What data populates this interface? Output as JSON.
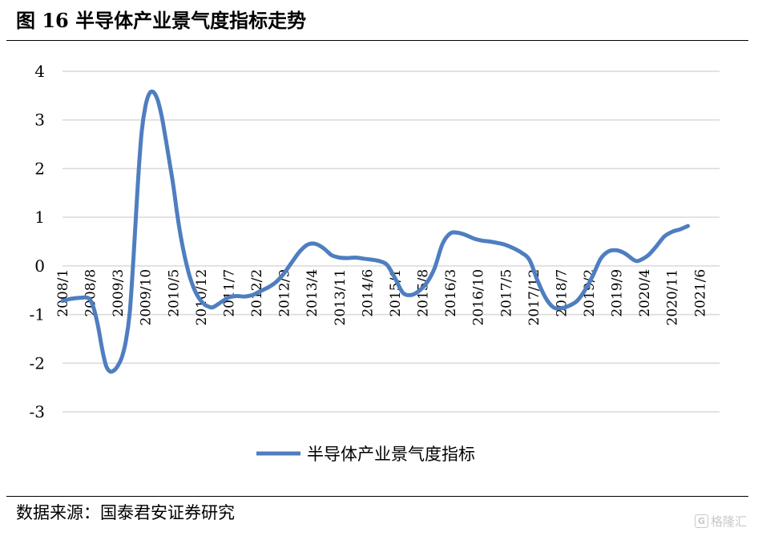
{
  "figure": {
    "title": "图 16  半导体产业景气度指标走势",
    "source": "数据来源：国泰君安证券研究",
    "watermark": "格隆汇"
  },
  "colors": {
    "line": "#4f7ec0",
    "grid": "#d9d9d9",
    "text": "#000000"
  },
  "chart_data": {
    "type": "line",
    "title": "",
    "xlabel": "",
    "ylabel": "",
    "ylim": [
      -3,
      4
    ],
    "yticks": [
      -3,
      -2,
      -1,
      0,
      1,
      2,
      3,
      4
    ],
    "grid": true,
    "legend_position": "bottom",
    "x_start": [
      2008,
      1
    ],
    "x_end": [
      2021,
      11
    ],
    "x_tick_labels": [
      "2008/1",
      "2008/8",
      "2009/3",
      "2009/10",
      "2010/5",
      "2010/12",
      "2011/7",
      "2012/2",
      "2012/9",
      "2013/4",
      "2013/11",
      "2014/6",
      "2015/1",
      "2015/8",
      "2016/3",
      "2016/10",
      "2017/5",
      "2017/12",
      "2018/7",
      "2019/2",
      "2019/9",
      "2020/4",
      "2020/11",
      "2021/6"
    ],
    "series": [
      {
        "name": "半导体产业景气度指标",
        "values": [
          [
            0,
            -0.72
          ],
          [
            2,
            -0.68
          ],
          [
            4,
            -0.66
          ],
          [
            6,
            -0.65
          ],
          [
            7,
            -0.7
          ],
          [
            8,
            -0.9
          ],
          [
            9,
            -1.25
          ],
          [
            10,
            -1.7
          ],
          [
            11,
            -2.05
          ],
          [
            12,
            -2.17
          ],
          [
            13,
            -2.15
          ],
          [
            14,
            -2.05
          ],
          [
            15,
            -1.88
          ],
          [
            16,
            -1.55
          ],
          [
            17,
            -0.95
          ],
          [
            18,
            0.25
          ],
          [
            19,
            1.65
          ],
          [
            20,
            2.75
          ],
          [
            21,
            3.3
          ],
          [
            22,
            3.55
          ],
          [
            23,
            3.57
          ],
          [
            24,
            3.42
          ],
          [
            25,
            3.1
          ],
          [
            26,
            2.65
          ],
          [
            27,
            2.15
          ],
          [
            28,
            1.65
          ],
          [
            29,
            1.05
          ],
          [
            30,
            0.55
          ],
          [
            31,
            0.15
          ],
          [
            32,
            -0.18
          ],
          [
            33,
            -0.42
          ],
          [
            34,
            -0.6
          ],
          [
            35,
            -0.72
          ],
          [
            36,
            -0.8
          ],
          [
            37,
            -0.84
          ],
          [
            38,
            -0.85
          ],
          [
            40,
            -0.75
          ],
          [
            42,
            -0.65
          ],
          [
            44,
            -0.62
          ],
          [
            46,
            -0.63
          ],
          [
            48,
            -0.6
          ],
          [
            50,
            -0.52
          ],
          [
            52,
            -0.44
          ],
          [
            54,
            -0.33
          ],
          [
            56,
            -0.15
          ],
          [
            58,
            0.08
          ],
          [
            60,
            0.3
          ],
          [
            62,
            0.44
          ],
          [
            64,
            0.45
          ],
          [
            66,
            0.36
          ],
          [
            68,
            0.22
          ],
          [
            70,
            0.17
          ],
          [
            72,
            0.16
          ],
          [
            74,
            0.17
          ],
          [
            76,
            0.15
          ],
          [
            78,
            0.13
          ],
          [
            80,
            0.1
          ],
          [
            82,
            0.02
          ],
          [
            84,
            -0.25
          ],
          [
            86,
            -0.55
          ],
          [
            88,
            -0.6
          ],
          [
            90,
            -0.52
          ],
          [
            92,
            -0.35
          ],
          [
            94,
            -0.05
          ],
          [
            96,
            0.45
          ],
          [
            98,
            0.67
          ],
          [
            100,
            0.68
          ],
          [
            102,
            0.63
          ],
          [
            104,
            0.56
          ],
          [
            106,
            0.52
          ],
          [
            108,
            0.5
          ],
          [
            110,
            0.47
          ],
          [
            112,
            0.43
          ],
          [
            114,
            0.36
          ],
          [
            116,
            0.27
          ],
          [
            118,
            0.12
          ],
          [
            120,
            -0.3
          ],
          [
            122,
            -0.65
          ],
          [
            124,
            -0.85
          ],
          [
            126,
            -0.87
          ],
          [
            128,
            -0.82
          ],
          [
            130,
            -0.72
          ],
          [
            132,
            -0.5
          ],
          [
            134,
            -0.2
          ],
          [
            136,
            0.15
          ],
          [
            138,
            0.3
          ],
          [
            140,
            0.32
          ],
          [
            142,
            0.26
          ],
          [
            144,
            0.14
          ],
          [
            145,
            0.1
          ],
          [
            146,
            0.12
          ],
          [
            148,
            0.22
          ],
          [
            150,
            0.4
          ],
          [
            152,
            0.6
          ],
          [
            154,
            0.7
          ],
          [
            156,
            0.75
          ],
          [
            158,
            0.82
          ]
        ]
      }
    ]
  }
}
